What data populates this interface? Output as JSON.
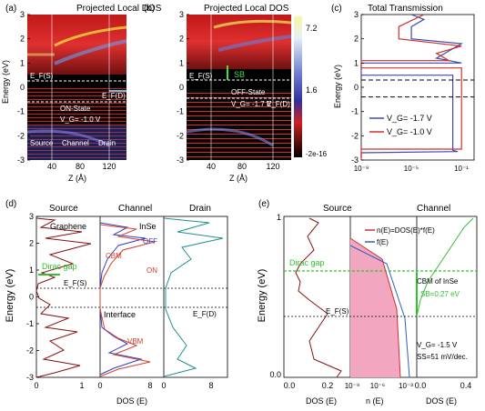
{
  "chart_data": [
    {
      "panel": "(a)",
      "type": "heatmap",
      "title": "Projected Local DOS",
      "xlabel": "Z (Å)",
      "ylabel": "Energy (eV)",
      "xticks": [
        "40",
        "80",
        "120"
      ],
      "yticks": [
        "3",
        "2",
        "1",
        "0",
        "-1",
        "-2",
        "-3"
      ],
      "ylim": [
        -3,
        3
      ],
      "annotations": {
        "ef_s": "E_F(S)",
        "ef_d": "E_F(D)",
        "state": "ON-State",
        "vg": "V_G= -1.0 V",
        "source": "Source",
        "channel": "Channel",
        "drain": "Drain"
      }
    },
    {
      "panel": "(b)",
      "type": "heatmap",
      "title": "Projected Local DOS",
      "xlabel": "Z (Å)",
      "xticks": [
        "40",
        "80",
        "120"
      ],
      "ylim": [
        -3,
        3
      ],
      "colorbar": [
        "7.2",
        "1.6",
        "-2e-16"
      ],
      "annotations": {
        "ef_s": "E_F(S)",
        "sb": "SB",
        "state": "OFF-State",
        "vg": "V_G= -1.7 V",
        "ef_d": "E_F(D)"
      }
    },
    {
      "panel": "(c)",
      "type": "line",
      "title": "Total Transmission",
      "ylabel": "Energy (eV)",
      "xscale": "log",
      "xticks": [
        "10⁻⁹",
        "10⁻⁵",
        "10⁻¹"
      ],
      "ylim": [
        -3,
        3
      ],
      "series": [
        {
          "name": "V_G= -1.7 V",
          "color": "#3b4bb0",
          "values": [
            [
              -2.9,
              1e-09
            ],
            [
              -2.7,
              1e-09
            ],
            [
              -2.65,
              0.05
            ],
            [
              -2.6,
              0.02
            ],
            [
              0.5,
              0.02
            ],
            [
              0.5,
              1e-09
            ],
            [
              1.0,
              1e-09
            ],
            [
              1.0,
              0.1
            ],
            [
              1.2,
              0.001
            ],
            [
              1.8,
              0.1
            ],
            [
              2.0,
              1e-05
            ],
            [
              2.5,
              1e-05
            ],
            [
              2.8,
              0.0001
            ],
            [
              3.0,
              1e-05
            ]
          ]
        },
        {
          "name": "V_G= -1.0 V",
          "color": "#d03030",
          "values": [
            [
              -3.0,
              1e-09
            ],
            [
              -2.55,
              1e-09
            ],
            [
              -2.55,
              0.1
            ],
            [
              -2.5,
              0.1
            ],
            [
              0.8,
              0.1
            ],
            [
              0.8,
              1e-09
            ],
            [
              1.1,
              1e-09
            ],
            [
              1.1,
              0.01
            ],
            [
              1.4,
              0.001
            ],
            [
              1.7,
              0.1
            ],
            [
              2.0,
              1e-06
            ],
            [
              2.5,
              1e-06
            ],
            [
              3.0,
              0.0001
            ]
          ]
        }
      ],
      "dashed_levels": [
        0.3,
        -0.4
      ]
    },
    {
      "panel": "(d)",
      "type": "line",
      "ylabel": "Energy (eV)",
      "xlabel": "DOS (E)",
      "ylim": [
        -3,
        3
      ],
      "sections": [
        "Source",
        "Channel",
        "Drain"
      ],
      "section_labels": {
        "graphene": "Graphene",
        "inse": "InSe",
        "interface": "Interface",
        "dirac": "Dirac gap",
        "ef_s": "E_F(S)",
        "ef_d": "E_F(D)",
        "cbm": "CBM",
        "vbm": "VBM",
        "off": "OFF",
        "on": "ON"
      },
      "xticks": [
        "0",
        "1",
        "0",
        "8",
        "0",
        "8"
      ],
      "yticks": [
        "3",
        "2",
        "1",
        "0",
        "-1",
        "-2",
        "-3"
      ]
    },
    {
      "panel": "(e)",
      "type": "area",
      "ylabel": "Energy (eV)",
      "ylim": [
        0,
        1
      ],
      "sections": [
        "Source",
        "Channel"
      ],
      "legend": [
        "n(E)=DOS(E)*f(E)",
        "f(E)"
      ],
      "xlabels": [
        "DOS (E)",
        "n (E)",
        "DOS (E)"
      ],
      "xticks_left": [
        "0.0",
        "0.2"
      ],
      "xticks_mid": [
        "10⁻⁹",
        "10⁻⁶",
        "10⁻³"
      ],
      "xticks_right": [
        "0.0",
        "0.4"
      ],
      "yticks": [
        "1",
        "0.0"
      ],
      "annotations": {
        "dirac": "Dirac gap",
        "ef_s": "E_F(S)",
        "cbm": "CBM of InSe",
        "sb": "SB=0.27 eV",
        "vg": "V_G= -1.5 V",
        "ss": "SS=51 mV/dec."
      }
    }
  ]
}
